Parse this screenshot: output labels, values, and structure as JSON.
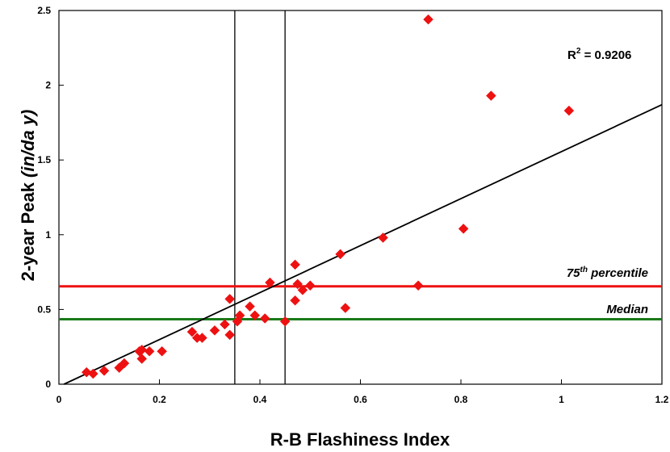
{
  "chart_data": {
    "type": "scatter",
    "title": "",
    "xlabel": "R-B Flashiness Index",
    "ylabel_parts": {
      "main": "2-year Peak  ",
      "unit": "(in/da y)"
    },
    "xlim": [
      0,
      1.2
    ],
    "ylim": [
      0,
      2.5
    ],
    "x_ticks": [
      "0",
      "0.2",
      "0.4",
      "0.6",
      "0.8",
      "1",
      "1.2"
    ],
    "y_ticks": [
      "0",
      "0.5",
      "1",
      "1.5",
      "2",
      "2.5"
    ],
    "grid": false,
    "marker_color": "#ee1111",
    "points": [
      [
        0.055,
        0.08
      ],
      [
        0.068,
        0.07
      ],
      [
        0.09,
        0.09
      ],
      [
        0.12,
        0.11
      ],
      [
        0.13,
        0.14
      ],
      [
        0.16,
        0.22
      ],
      [
        0.165,
        0.23
      ],
      [
        0.165,
        0.17
      ],
      [
        0.18,
        0.22
      ],
      [
        0.205,
        0.22
      ],
      [
        0.265,
        0.35
      ],
      [
        0.275,
        0.31
      ],
      [
        0.285,
        0.31
      ],
      [
        0.31,
        0.36
      ],
      [
        0.33,
        0.4
      ],
      [
        0.34,
        0.33
      ],
      [
        0.34,
        0.57
      ],
      [
        0.355,
        0.42
      ],
      [
        0.36,
        0.46
      ],
      [
        0.38,
        0.52
      ],
      [
        0.39,
        0.46
      ],
      [
        0.41,
        0.44
      ],
      [
        0.42,
        0.68
      ],
      [
        0.45,
        0.42
      ],
      [
        0.47,
        0.56
      ],
      [
        0.47,
        0.8
      ],
      [
        0.475,
        0.67
      ],
      [
        0.485,
        0.63
      ],
      [
        0.5,
        0.66
      ],
      [
        0.56,
        0.87
      ],
      [
        0.57,
        0.51
      ],
      [
        0.645,
        0.98
      ],
      [
        0.715,
        0.66
      ],
      [
        0.735,
        2.44
      ],
      [
        0.805,
        1.04
      ],
      [
        0.86,
        1.93
      ],
      [
        1.015,
        1.83
      ]
    ],
    "trendline": {
      "x": [
        0.01,
        1.2
      ],
      "y": [
        0.0,
        1.87
      ],
      "color": "#000000"
    },
    "vertical_lines": [
      0.35,
      0.45
    ],
    "horizontal_lines": [
      {
        "y": 0.655,
        "color": "#ee1111",
        "label_main": "75",
        "label_sup": "th",
        "label_rest": " percentile"
      },
      {
        "y": 0.435,
        "color": "#1a7a1a",
        "label_main": "Median",
        "label_sup": "",
        "label_rest": ""
      }
    ],
    "r2": {
      "prefix": "R",
      "sup": "2",
      "value": " = 0.9206"
    }
  }
}
